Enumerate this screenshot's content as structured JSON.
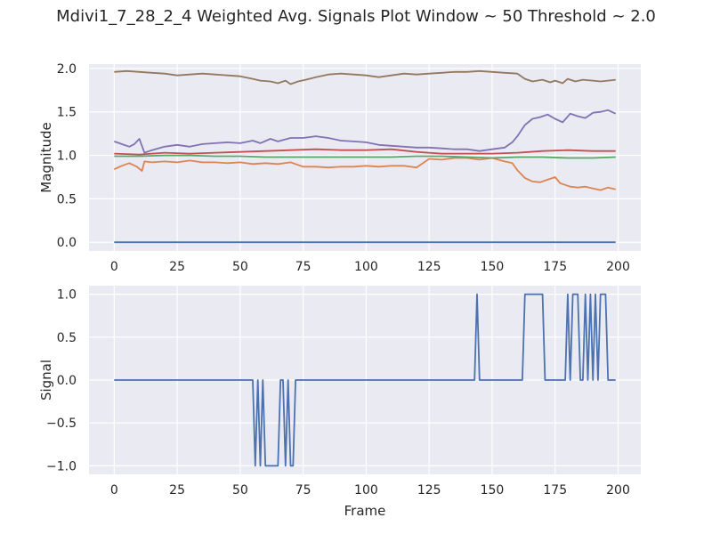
{
  "title": "Mdivi1_7_28_2_4 Weighted Avg. Signals Plot Window ~ 50 Threshold ~ 2.0",
  "colors": {
    "background": "#ffffff",
    "axes_bg": "#eaeaf2",
    "grid": "#ffffff",
    "text": "#262626"
  },
  "chart_data": [
    {
      "type": "line",
      "xlabel": "",
      "ylabel": "Magnitude",
      "xlim": [
        -10,
        209
      ],
      "ylim": [
        -0.1,
        2.05
      ],
      "xticks": [
        0,
        25,
        50,
        75,
        100,
        125,
        150,
        175,
        200
      ],
      "yticks": [
        0.0,
        0.5,
        1.0,
        1.5,
        2.0
      ],
      "xtick_labels": [
        "0",
        "25",
        "50",
        "75",
        "100",
        "125",
        "150",
        "175",
        "200"
      ],
      "ytick_labels": [
        "0.0",
        "0.5",
        "1.0",
        "1.5",
        "2.0"
      ],
      "grid": true,
      "series": [
        {
          "color": "#4c72b0",
          "x": [
            0,
            199
          ],
          "y": [
            0.0,
            0.0
          ]
        },
        {
          "color": "#dd8452",
          "x": [
            0,
            3,
            6,
            9,
            11,
            12,
            15,
            20,
            25,
            30,
            35,
            40,
            45,
            50,
            55,
            60,
            65,
            70,
            75,
            80,
            85,
            90,
            95,
            100,
            105,
            110,
            115,
            120,
            125,
            130,
            135,
            140,
            145,
            150,
            155,
            158,
            160,
            163,
            166,
            169,
            172,
            175,
            177,
            179,
            181,
            184,
            187,
            190,
            193,
            196,
            199
          ],
          "y": [
            0.84,
            0.88,
            0.91,
            0.87,
            0.82,
            0.93,
            0.92,
            0.93,
            0.92,
            0.94,
            0.92,
            0.92,
            0.91,
            0.92,
            0.9,
            0.91,
            0.9,
            0.92,
            0.87,
            0.87,
            0.86,
            0.87,
            0.87,
            0.88,
            0.87,
            0.88,
            0.88,
            0.86,
            0.96,
            0.95,
            0.97,
            0.97,
            0.95,
            0.97,
            0.93,
            0.91,
            0.83,
            0.74,
            0.7,
            0.69,
            0.72,
            0.75,
            0.68,
            0.66,
            0.64,
            0.63,
            0.64,
            0.62,
            0.6,
            0.63,
            0.61
          ]
        },
        {
          "color": "#55a868",
          "x": [
            0,
            10,
            20,
            30,
            40,
            50,
            60,
            70,
            80,
            90,
            100,
            110,
            120,
            130,
            140,
            150,
            160,
            170,
            180,
            190,
            199
          ],
          "y": [
            0.99,
            0.99,
            1.0,
            1.0,
            0.99,
            0.99,
            0.98,
            0.98,
            0.98,
            0.98,
            0.98,
            0.98,
            0.99,
            0.99,
            0.98,
            0.97,
            0.98,
            0.98,
            0.97,
            0.97,
            0.98
          ]
        },
        {
          "color": "#c44e52",
          "x": [
            0,
            10,
            20,
            30,
            40,
            50,
            60,
            70,
            80,
            90,
            100,
            110,
            120,
            130,
            140,
            150,
            160,
            165,
            170,
            180,
            190,
            199
          ],
          "y": [
            1.02,
            1.01,
            1.03,
            1.02,
            1.03,
            1.04,
            1.05,
            1.06,
            1.07,
            1.06,
            1.06,
            1.07,
            1.04,
            1.02,
            1.02,
            1.02,
            1.03,
            1.04,
            1.05,
            1.06,
            1.05,
            1.05
          ]
        },
        {
          "color": "#8172b3",
          "x": [
            0,
            3,
            6,
            8,
            10,
            12,
            15,
            20,
            25,
            30,
            35,
            40,
            45,
            50,
            55,
            58,
            62,
            65,
            70,
            73,
            75,
            80,
            85,
            90,
            95,
            100,
            105,
            110,
            115,
            120,
            125,
            130,
            135,
            140,
            145,
            150,
            155,
            158,
            160,
            163,
            166,
            169,
            172,
            175,
            178,
            181,
            184,
            187,
            190,
            193,
            196,
            199
          ],
          "y": [
            1.16,
            1.13,
            1.1,
            1.13,
            1.19,
            1.03,
            1.06,
            1.1,
            1.12,
            1.1,
            1.13,
            1.14,
            1.15,
            1.14,
            1.17,
            1.14,
            1.19,
            1.16,
            1.2,
            1.2,
            1.2,
            1.22,
            1.2,
            1.17,
            1.16,
            1.15,
            1.12,
            1.11,
            1.1,
            1.09,
            1.09,
            1.08,
            1.07,
            1.07,
            1.05,
            1.07,
            1.09,
            1.15,
            1.22,
            1.35,
            1.42,
            1.44,
            1.47,
            1.42,
            1.38,
            1.48,
            1.45,
            1.43,
            1.49,
            1.5,
            1.52,
            1.48
          ]
        },
        {
          "color": "#937860",
          "x": [
            0,
            5,
            10,
            15,
            20,
            25,
            30,
            35,
            40,
            45,
            50,
            55,
            58,
            62,
            65,
            68,
            70,
            73,
            76,
            80,
            85,
            90,
            95,
            100,
            105,
            110,
            115,
            120,
            125,
            130,
            135,
            140,
            145,
            150,
            155,
            160,
            163,
            166,
            170,
            173,
            175,
            178,
            180,
            183,
            186,
            190,
            193,
            196,
            199
          ],
          "y": [
            1.96,
            1.97,
            1.96,
            1.95,
            1.94,
            1.92,
            1.93,
            1.94,
            1.93,
            1.92,
            1.91,
            1.88,
            1.86,
            1.85,
            1.83,
            1.86,
            1.82,
            1.85,
            1.87,
            1.9,
            1.93,
            1.94,
            1.93,
            1.92,
            1.9,
            1.92,
            1.94,
            1.93,
            1.94,
            1.95,
            1.96,
            1.96,
            1.97,
            1.96,
            1.95,
            1.94,
            1.88,
            1.85,
            1.87,
            1.84,
            1.86,
            1.83,
            1.88,
            1.85,
            1.87,
            1.86,
            1.85,
            1.86,
            1.87
          ]
        }
      ]
    },
    {
      "type": "line",
      "xlabel": "Frame",
      "ylabel": "Signal",
      "xlim": [
        -10,
        209
      ],
      "ylim": [
        -1.1,
        1.1
      ],
      "xticks": [
        0,
        25,
        50,
        75,
        100,
        125,
        150,
        175,
        200
      ],
      "yticks": [
        -1.0,
        -0.5,
        0.0,
        0.5,
        1.0
      ],
      "xtick_labels": [
        "0",
        "25",
        "50",
        "75",
        "100",
        "125",
        "150",
        "175",
        "200"
      ],
      "ytick_labels": [
        "−1.0",
        "−0.5",
        "0.0",
        "0.5",
        "1.0"
      ],
      "grid": true,
      "series": [
        {
          "color": "#4c72b0",
          "x": [
            0,
            55,
            56,
            57,
            58,
            59,
            60,
            65,
            66,
            67,
            68,
            69,
            70,
            71,
            72,
            143,
            144,
            145,
            162,
            163,
            170,
            171,
            179,
            180,
            181,
            182,
            184,
            185,
            186,
            187,
            188,
            189,
            190,
            191,
            192,
            193,
            195,
            196,
            199
          ],
          "y": [
            0,
            0,
            -1,
            0,
            -1,
            0,
            -1,
            -1,
            0,
            0,
            -1,
            0,
            -1,
            -1,
            0,
            0,
            1,
            0,
            0,
            1,
            1,
            0,
            0,
            1,
            0,
            1,
            1,
            0,
            0,
            1,
            0,
            1,
            0,
            1,
            0,
            1,
            1,
            0,
            0
          ]
        }
      ]
    }
  ]
}
